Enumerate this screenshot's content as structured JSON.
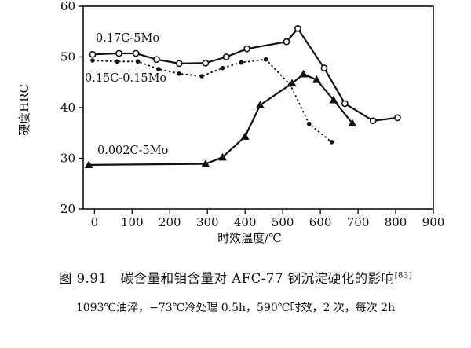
{
  "chart_data": {
    "type": "line",
    "xlabel": "时效温度/℃",
    "ylabel": "硬度HRC",
    "xlim": [
      -30,
      900
    ],
    "ylim": [
      20,
      60
    ],
    "xticks": [
      0,
      100,
      200,
      300,
      400,
      500,
      600,
      700,
      800,
      900
    ],
    "yticks": [
      20,
      30,
      40,
      50,
      60
    ],
    "grid": false,
    "series": [
      {
        "name": "0.17C-5Mo",
        "marker": "open-circle",
        "line": "solid",
        "x": [
          -5,
          65,
          110,
          165,
          225,
          295,
          350,
          405,
          510,
          540,
          610,
          665,
          740,
          805
        ],
        "y": [
          50.5,
          50.7,
          50.7,
          49.5,
          48.7,
          48.8,
          50.0,
          51.6,
          53.0,
          55.6,
          47.8,
          40.8,
          37.4,
          38.0
        ]
      },
      {
        "name": "0.15C-0.15Mo",
        "marker": "filled-circle",
        "line": "dotted",
        "x": [
          -5,
          60,
          115,
          170,
          225,
          285,
          340,
          390,
          455,
          520,
          570,
          630
        ],
        "y": [
          49.3,
          49.1,
          49.1,
          47.6,
          46.7,
          46.2,
          47.8,
          48.9,
          49.5,
          44.5,
          36.8,
          33.2
        ]
      },
      {
        "name": "0.002C-5Mo",
        "marker": "filled-triangle",
        "line": "solid",
        "x": [
          -15,
          295,
          340,
          400,
          440,
          525,
          555,
          590,
          635,
          685
        ],
        "y": [
          28.7,
          28.9,
          30.2,
          34.3,
          40.5,
          44.8,
          46.6,
          45.5,
          41.5,
          36.9
        ]
      }
    ]
  },
  "caption": {
    "figure_no": "图 9.91",
    "title": "碳含量和钼含量对 AFC-77 钢沉淀硬化的影响",
    "ref": "[83]",
    "subtitle": "1093℃油淬，−73℃冷处理 0.5h，590℃时效，2 次，每次 2h"
  }
}
